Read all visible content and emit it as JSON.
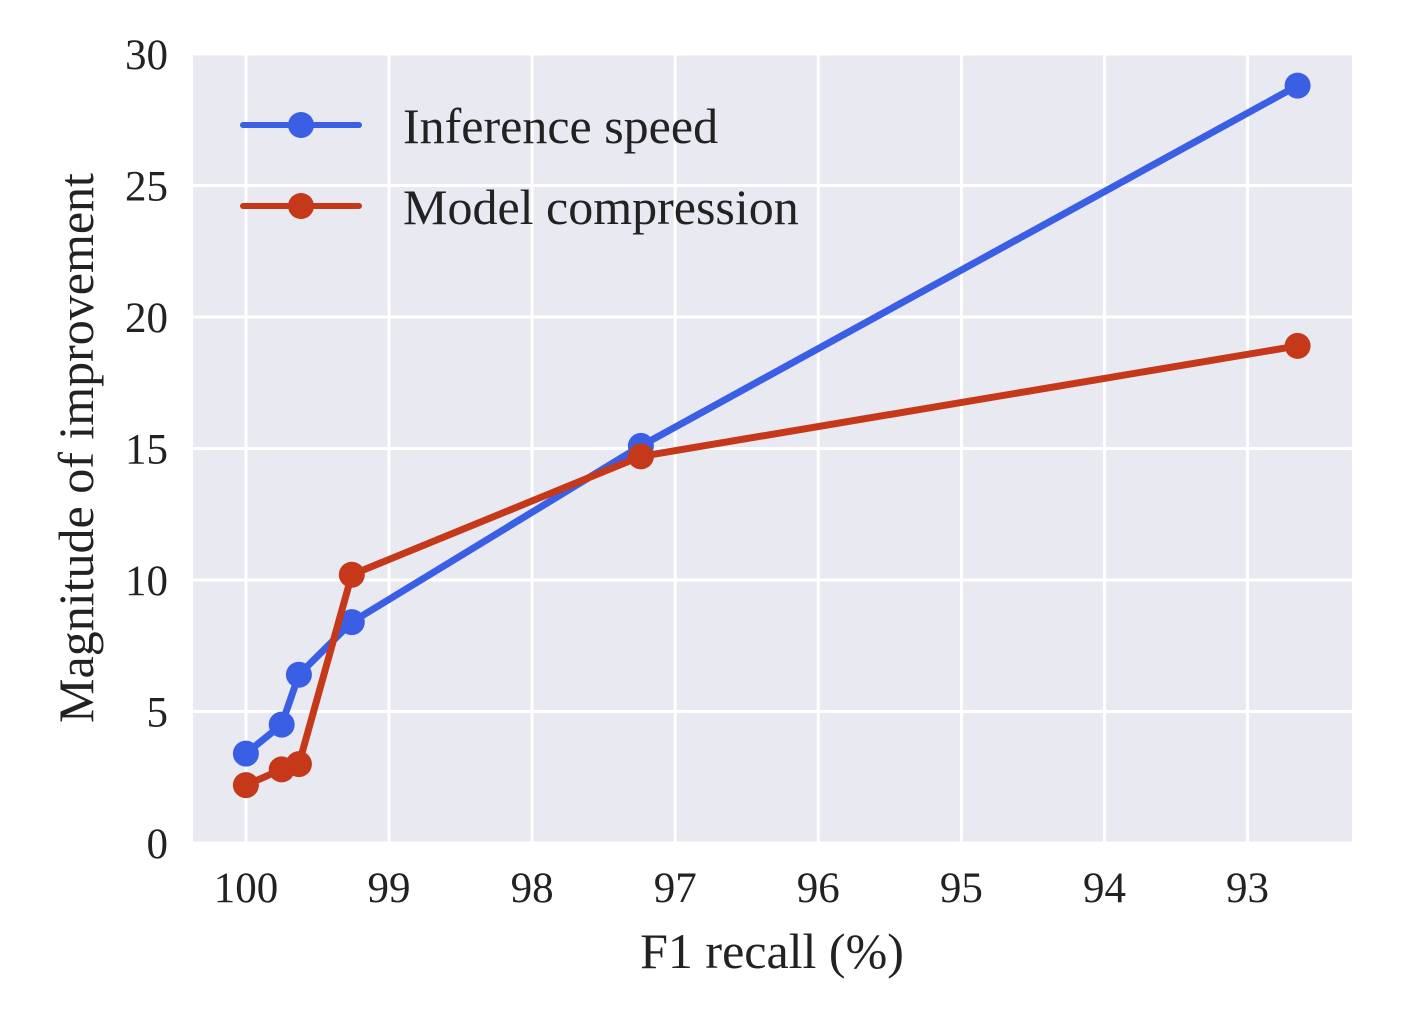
{
  "chart_data": {
    "type": "line",
    "title": "",
    "xlabel": "F1 recall (%)",
    "ylabel": "Magnitude of improvement",
    "x_reversed": true,
    "xlim": [
      100.37,
      92.27
    ],
    "ylim": [
      0,
      30
    ],
    "xticks": [
      100,
      99,
      98,
      97,
      96,
      95,
      94,
      93
    ],
    "yticks": [
      0,
      5,
      10,
      15,
      20,
      25,
      30
    ],
    "grid": true,
    "legend_position": "upper-left",
    "series": [
      {
        "name": "Inference speed",
        "color": "#3a5fe5",
        "x": [
          100.0,
          99.75,
          99.63,
          99.26,
          97.24,
          92.65
        ],
        "y": [
          3.4,
          4.5,
          6.4,
          8.4,
          15.1,
          28.8
        ]
      },
      {
        "name": "Model compression",
        "color": "#c5391a",
        "x": [
          100.0,
          99.75,
          99.63,
          99.26,
          97.24,
          92.65
        ],
        "y": [
          2.2,
          2.8,
          3.0,
          10.2,
          14.7,
          18.9
        ]
      }
    ]
  }
}
